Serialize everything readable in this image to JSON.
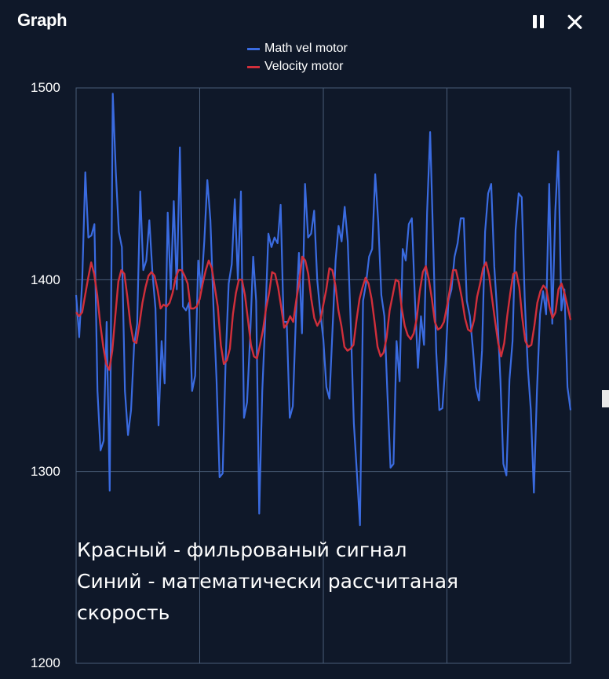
{
  "header": {
    "title": "Graph"
  },
  "icons": {
    "pause": "pause-icon",
    "close": "close-icon"
  },
  "colors": {
    "background": "#0f1829",
    "grid": "#4a5d78",
    "math_vel": "#3a6be0",
    "velocity": "#d12f3b"
  },
  "chart_data": {
    "type": "line",
    "title": "",
    "xlabel": "",
    "ylabel": "",
    "ylim": [
      1200,
      1500
    ],
    "yticks": [
      "1200",
      "1300",
      "1400",
      "1500"
    ],
    "grid": true,
    "legend_position": "top-center",
    "series": [
      {
        "name": "Math vel motor",
        "color": "#3a6be0",
        "values": [
          1392,
          1370,
          1400,
          1456,
          1422,
          1423,
          1429,
          1342,
          1311,
          1316,
          1378,
          1290,
          1497,
          1456,
          1425,
          1417,
          1342,
          1319,
          1332,
          1366,
          1377,
          1446,
          1405,
          1410,
          1431,
          1404,
          1385,
          1324,
          1368,
          1346,
          1435,
          1395,
          1441,
          1395,
          1469,
          1386,
          1384,
          1388,
          1342,
          1350,
          1410,
          1395,
          1420,
          1452,
          1431,
          1386,
          1348,
          1297,
          1299,
          1359,
          1398,
          1408,
          1442,
          1400,
          1446,
          1328,
          1336,
          1370,
          1412,
          1389,
          1278,
          1342,
          1380,
          1424,
          1417,
          1422,
          1419,
          1439,
          1378,
          1378,
          1328,
          1334,
          1380,
          1414,
          1372,
          1450,
          1422,
          1424,
          1436,
          1400,
          1383,
          1369,
          1344,
          1338,
          1374,
          1410,
          1428,
          1420,
          1438,
          1420,
          1376,
          1325,
          1299,
          1272,
          1389,
          1398,
          1412,
          1416,
          1455,
          1430,
          1392,
          1381,
          1340,
          1302,
          1304,
          1368,
          1347,
          1416,
          1410,
          1429,
          1432,
          1390,
          1354,
          1381,
          1366,
          1435,
          1477,
          1419,
          1362,
          1332,
          1333,
          1356,
          1389,
          1395,
          1412,
          1419,
          1432,
          1432,
          1389,
          1381,
          1364,
          1344,
          1337,
          1363,
          1425,
          1445,
          1450,
          1407,
          1382,
          1348,
          1304,
          1298,
          1348,
          1368,
          1426,
          1445,
          1443,
          1389,
          1354,
          1332,
          1289,
          1342,
          1382,
          1394,
          1382,
          1450,
          1377,
          1436,
          1467,
          1384,
          1395,
          1344,
          1332
        ]
      },
      {
        "name": "Velocity motor",
        "color": "#d12f3b",
        "values": [
          1383,
          1381,
          1383,
          1392,
          1401,
          1409,
          1403,
          1392,
          1377,
          1365,
          1356,
          1353,
          1363,
          1381,
          1399,
          1405,
          1403,
          1391,
          1377,
          1368,
          1367,
          1377,
          1388,
          1396,
          1402,
          1404,
          1402,
          1395,
          1385,
          1387,
          1386,
          1388,
          1393,
          1401,
          1405,
          1405,
          1402,
          1398,
          1385,
          1385,
          1386,
          1390,
          1398,
          1405,
          1410,
          1406,
          1396,
          1386,
          1366,
          1356,
          1358,
          1364,
          1382,
          1393,
          1400,
          1400,
          1392,
          1379,
          1366,
          1360,
          1359,
          1366,
          1374,
          1385,
          1393,
          1404,
          1403,
          1396,
          1386,
          1375,
          1377,
          1381,
          1378,
          1389,
          1399,
          1412,
          1410,
          1403,
          1390,
          1380,
          1376,
          1379,
          1387,
          1395,
          1406,
          1405,
          1397,
          1384,
          1376,
          1365,
          1363,
          1364,
          1366,
          1379,
          1390,
          1396,
          1401,
          1398,
          1390,
          1378,
          1365,
          1360,
          1362,
          1370,
          1384,
          1392,
          1400,
          1399,
          1385,
          1376,
          1371,
          1369,
          1372,
          1380,
          1394,
          1404,
          1407,
          1400,
          1390,
          1378,
          1374,
          1375,
          1378,
          1386,
          1395,
          1405,
          1405,
          1398,
          1390,
          1380,
          1374,
          1373,
          1379,
          1391,
          1398,
          1406,
          1409,
          1402,
          1390,
          1378,
          1367,
          1360,
          1367,
          1381,
          1393,
          1403,
          1404,
          1396,
          1380,
          1368,
          1365,
          1366,
          1376,
          1388,
          1394,
          1397,
          1395,
          1386,
          1380,
          1383,
          1395,
          1398,
          1393,
          1386,
          1379
        ]
      }
    ]
  },
  "annotation": {
    "lines": [
      "Красный - фильрованый сигнал",
      "Синий - математически рассчитаная",
      "скорость"
    ]
  }
}
